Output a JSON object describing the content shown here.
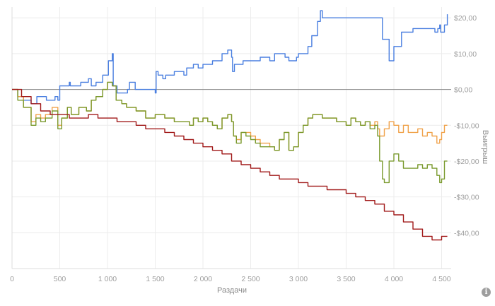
{
  "chart_data": {
    "type": "line",
    "title": "",
    "xlabel": "Раздачи",
    "ylabel": "Выигрыш",
    "xlim": [
      0,
      4600
    ],
    "ylim": [
      -50,
      23
    ],
    "x_ticks": [
      0,
      500,
      1000,
      1500,
      2000,
      2500,
      3000,
      3500,
      4000,
      4500
    ],
    "x_tick_labels": [
      "0",
      "500",
      "1 000",
      "1 500",
      "2 000",
      "2 500",
      "3 000",
      "3 500",
      "4 000",
      "4 500"
    ],
    "y_ticks": [
      20,
      10,
      0,
      -10,
      -20,
      -30,
      -40
    ],
    "y_tick_labels": [
      "$20,00",
      "$10,00",
      "$0,00",
      "-$10,00",
      "-$20,00",
      "-$30,00",
      "-$40,00"
    ],
    "grid": true,
    "legend": "none",
    "series": [
      {
        "color": "#4a7fe0",
        "x": [
          0,
          60,
          120,
          200,
          260,
          360,
          450,
          480,
          500,
          600,
          610,
          640,
          720,
          800,
          830,
          880,
          950,
          1010,
          1050,
          1060,
          1100,
          1210,
          1230,
          1290,
          1500,
          1510,
          1530,
          1580,
          1610,
          1700,
          1800,
          1830,
          1900,
          1950,
          2000,
          2020,
          2100,
          2160,
          2200,
          2260,
          2300,
          2310,
          2330,
          2420,
          2520,
          2600,
          2700,
          2750,
          2800,
          2860,
          2890,
          2900,
          2980,
          3000,
          3080,
          3100,
          3140,
          3200,
          3230,
          3250,
          3270,
          3300,
          3400,
          3500,
          3550,
          3600,
          3800,
          3860,
          3880,
          3950,
          4000,
          4080,
          4120,
          4170,
          4200,
          4300,
          4400,
          4430,
          4460,
          4480,
          4490,
          4500,
          4530,
          4560
        ],
        "y": [
          0,
          -2,
          -3,
          -4,
          -2,
          -3,
          -2,
          -3,
          1,
          2,
          1,
          1,
          2,
          3,
          1,
          2,
          4,
          8,
          10,
          1,
          -1,
          0,
          2,
          0,
          -1,
          5,
          4,
          3,
          4,
          5,
          4,
          6,
          7,
          6,
          7,
          7,
          8,
          8,
          10,
          11,
          9,
          5,
          7,
          8,
          8,
          9,
          8,
          10,
          10,
          9,
          9,
          8,
          9,
          10,
          10,
          12,
          15,
          19,
          22,
          20,
          20,
          20,
          20,
          20,
          20,
          20,
          20,
          20,
          14,
          8,
          12,
          16,
          16,
          16,
          17,
          17,
          17,
          16,
          17,
          18,
          16,
          16,
          18,
          21
        ]
      },
      {
        "color": "#f0a24a",
        "x": [
          0,
          60,
          120,
          200,
          250,
          300,
          350,
          420,
          480,
          520,
          580,
          620,
          700,
          780,
          830,
          880,
          950,
          1000,
          1050,
          1090,
          1150,
          1200,
          1300,
          1400,
          1500,
          1600,
          1700,
          1800,
          1860,
          1900,
          1950,
          2000,
          2050,
          2100,
          2150,
          2200,
          2260,
          2300,
          2320,
          2350,
          2400,
          2450,
          2500,
          2550,
          2600,
          2700,
          2750,
          2800,
          2850,
          2900,
          2950,
          3000,
          3050,
          3100,
          3150,
          3200,
          3250,
          3300,
          3350,
          3400,
          3500,
          3550,
          3600,
          3650,
          3700,
          3750,
          3800,
          3830,
          3850,
          3900,
          3950,
          4000,
          4050,
          4100,
          4150,
          4200,
          4250,
          4300,
          4350,
          4400,
          4450,
          4480,
          4500,
          4530,
          4560
        ],
        "y": [
          0,
          -2,
          -5,
          -9,
          -7,
          -8,
          -7,
          -5,
          -10,
          -8,
          -5,
          -7,
          -5,
          -6,
          -3,
          -2,
          0,
          2,
          1,
          -3,
          -4,
          -5,
          -6,
          -8,
          -7,
          -8,
          -9,
          -9,
          -10,
          -8,
          -9,
          -8,
          -9,
          -10,
          -11,
          -8,
          -7,
          -9,
          -13,
          -14,
          -12,
          -12,
          -13,
          -14,
          -15,
          -16,
          -17,
          -14,
          -12,
          -17,
          -16,
          -12,
          -10,
          -8,
          -7,
          -7,
          -8,
          -8,
          -8,
          -9,
          -10,
          -8,
          -9,
          -10,
          -9,
          -10,
          -9,
          -11,
          -13,
          -11,
          -9,
          -10,
          -12,
          -10,
          -12,
          -12,
          -11,
          -13,
          -12,
          -13,
          -15,
          -14,
          -12,
          -10,
          -10
        ]
      },
      {
        "color": "#7a9a2e",
        "x": [
          0,
          60,
          120,
          200,
          250,
          300,
          350,
          420,
          480,
          520,
          580,
          620,
          700,
          780,
          830,
          880,
          950,
          1000,
          1050,
          1090,
          1150,
          1200,
          1300,
          1400,
          1500,
          1600,
          1700,
          1800,
          1860,
          1900,
          1950,
          2000,
          2050,
          2100,
          2150,
          2200,
          2260,
          2300,
          2320,
          2350,
          2400,
          2450,
          2500,
          2550,
          2600,
          2700,
          2750,
          2800,
          2850,
          2900,
          2950,
          3000,
          3050,
          3100,
          3150,
          3200,
          3250,
          3300,
          3350,
          3400,
          3500,
          3550,
          3600,
          3650,
          3700,
          3750,
          3800,
          3830,
          3850,
          3880,
          3900,
          3950,
          4000,
          4050,
          4100,
          4150,
          4200,
          4250,
          4300,
          4350,
          4400,
          4450,
          4480,
          4500,
          4530,
          4560
        ],
        "y": [
          0,
          -3,
          -5,
          -10,
          -8,
          -9,
          -8,
          -6,
          -11,
          -8,
          -5,
          -7,
          -5,
          -6,
          -3,
          -2,
          0,
          2,
          1,
          -3,
          -4,
          -5,
          -6,
          -8,
          -7,
          -8,
          -9,
          -9,
          -10,
          -8,
          -9,
          -8,
          -9,
          -10,
          -11,
          -8,
          -7,
          -9,
          -13,
          -15,
          -12,
          -13,
          -14,
          -15,
          -16,
          -16,
          -17,
          -14,
          -12,
          -17,
          -16,
          -12,
          -10,
          -8,
          -7,
          -7,
          -8,
          -8,
          -8,
          -9,
          -10,
          -8,
          -9,
          -10,
          -9,
          -11,
          -10,
          -13,
          -20,
          -25,
          -26,
          -20,
          -18,
          -20,
          -22,
          -22,
          -22,
          -21,
          -22,
          -21,
          -22,
          -24,
          -26,
          -25,
          -20,
          -20
        ]
      },
      {
        "color": "#a11a1a",
        "x": [
          0,
          100,
          200,
          300,
          400,
          500,
          600,
          700,
          800,
          900,
          1000,
          1100,
          1200,
          1300,
          1400,
          1500,
          1600,
          1700,
          1800,
          1900,
          2000,
          2100,
          2200,
          2300,
          2400,
          2500,
          2600,
          2700,
          2800,
          2900,
          3000,
          3100,
          3200,
          3300,
          3400,
          3500,
          3600,
          3700,
          3800,
          3900,
          4000,
          4100,
          4200,
          4300,
          4400,
          4500,
          4560
        ],
        "y": [
          0,
          -2,
          -4,
          -6,
          -7,
          -7,
          -8,
          -8,
          -7,
          -8,
          -8,
          -9,
          -9,
          -10,
          -11,
          -11,
          -12,
          -13,
          -14,
          -15,
          -16,
          -17,
          -18,
          -20,
          -21,
          -22,
          -23,
          -24,
          -25,
          -25,
          -26,
          -27,
          -27,
          -28,
          -28,
          -29,
          -30,
          -31,
          -32,
          -34,
          -35,
          -37,
          -39,
          -41,
          -42,
          -41,
          -41
        ]
      }
    ]
  }
}
